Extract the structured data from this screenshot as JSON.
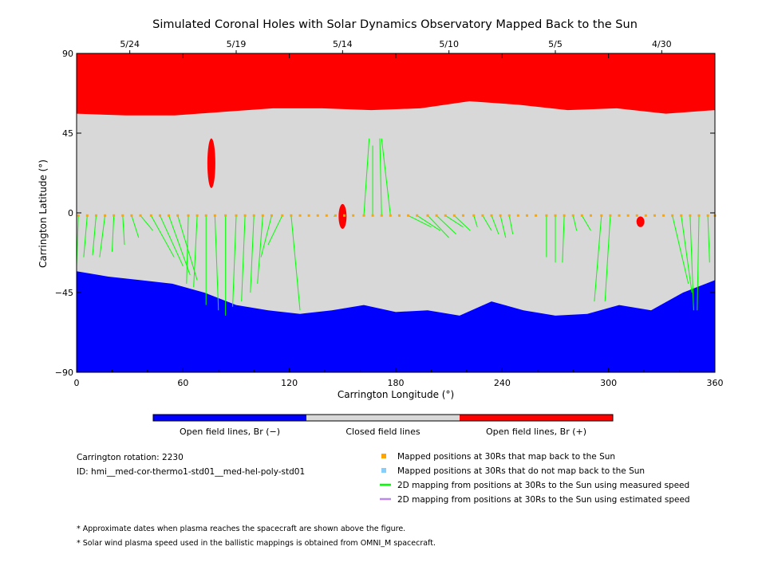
{
  "chart_data": {
    "type": "heatmap",
    "title": "Simulated Coronal Holes with Solar Dynamics Observatory Mapped Back to the Sun",
    "xlabel": "Carrington Longitude (°)",
    "ylabel": "Carrington Latitude (°)",
    "xlim": [
      0,
      360
    ],
    "ylim": [
      -90,
      90
    ],
    "x_ticks": [
      0,
      60,
      120,
      180,
      240,
      300,
      360
    ],
    "y_ticks": [
      90,
      45,
      0,
      -45,
      -90
    ],
    "y_tick_labels": [
      "90",
      "45",
      "0",
      "−45",
      "−90"
    ],
    "top_axis_dates": [
      {
        "label": "5/24",
        "lon": 30
      },
      {
        "label": "5/19",
        "lon": 90
      },
      {
        "label": "5/14",
        "lon": 150
      },
      {
        "label": "5/10",
        "lon": 210
      },
      {
        "label": "5/5",
        "lon": 270
      },
      {
        "label": "4/30",
        "lon": 330
      }
    ],
    "colorbar": [
      {
        "label": "Open field lines, Br (−)",
        "color": "#0000ff"
      },
      {
        "label": "Closed field lines",
        "color": "#d8d8d8"
      },
      {
        "label": "Open field lines, Br (+)",
        "color": "#ff0000"
      }
    ],
    "regions": {
      "north_open_positive_boundary_lat": [
        56,
        55,
        55,
        57,
        59,
        59,
        58,
        59,
        63,
        61,
        58,
        59,
        56,
        58
      ],
      "south_open_negative_boundary_lat": [
        -33,
        -36,
        -38,
        -40,
        -45,
        -52,
        -55,
        -57,
        -55,
        -52,
        -56,
        -55,
        -58,
        -50,
        -55,
        -58,
        -57,
        -52,
        -55,
        -45,
        -38
      ],
      "positive_polarity_patches": [
        {
          "lon": 76,
          "lat": 28,
          "extent_lat": [
            8,
            36
          ]
        },
        {
          "lon": 150,
          "lat": -2,
          "extent_lat": [
            -8,
            6
          ]
        },
        {
          "lon": 318,
          "lat": -5,
          "extent_lat": [
            -8,
            -2
          ]
        }
      ]
    },
    "mapped_positions_at_30Rs": {
      "lat": -1.5,
      "lon": [
        1,
        6,
        11,
        16,
        21,
        26,
        31,
        36,
        42,
        47,
        52,
        57,
        63,
        68,
        73,
        78,
        84,
        90,
        95,
        100,
        105,
        110,
        116,
        121,
        126,
        131,
        136,
        141,
        146,
        151,
        156,
        162,
        167,
        172,
        177,
        182,
        187,
        192,
        198,
        203,
        208,
        213,
        218,
        224,
        229,
        234,
        239,
        244,
        249,
        254,
        259,
        265,
        270,
        275,
        280,
        285,
        290,
        296,
        301,
        306,
        311,
        316,
        321,
        326,
        331,
        336,
        341,
        346,
        351,
        356,
        360
      ]
    },
    "mapping_lines_measured_speed": [
      {
        "from": [
          1,
          -1.5
        ],
        "to": [
          0,
          -30
        ]
      },
      {
        "from": [
          6,
          -1.5
        ],
        "to": [
          4,
          -25
        ]
      },
      {
        "from": [
          11,
          -1.5
        ],
        "to": [
          9,
          -24
        ]
      },
      {
        "from": [
          16,
          -1.5
        ],
        "to": [
          13,
          -25
        ]
      },
      {
        "from": [
          21,
          -1.5
        ],
        "to": [
          20,
          -22
        ]
      },
      {
        "from": [
          26,
          -1.5
        ],
        "to": [
          27,
          -18
        ]
      },
      {
        "from": [
          31,
          -1.5
        ],
        "to": [
          35,
          -14
        ]
      },
      {
        "from": [
          36,
          -1.5
        ],
        "to": [
          43,
          -10
        ]
      },
      {
        "from": [
          42,
          -1.5
        ],
        "to": [
          55,
          -25
        ]
      },
      {
        "from": [
          47,
          -1.5
        ],
        "to": [
          60,
          -30
        ]
      },
      {
        "from": [
          52,
          -1.5
        ],
        "to": [
          64,
          -35
        ]
      },
      {
        "from": [
          57,
          -1.5
        ],
        "to": [
          68,
          -38
        ]
      },
      {
        "from": [
          63,
          -1.5
        ],
        "to": [
          62,
          -40
        ]
      },
      {
        "from": [
          68,
          -1.5
        ],
        "to": [
          66,
          -42
        ]
      },
      {
        "from": [
          73,
          -1.5
        ],
        "to": [
          73,
          -52
        ]
      },
      {
        "from": [
          78,
          -1.5
        ],
        "to": [
          80,
          -55
        ]
      },
      {
        "from": [
          84,
          -1.5
        ],
        "to": [
          84,
          -58
        ]
      },
      {
        "from": [
          90,
          -1.5
        ],
        "to": [
          88,
          -53
        ]
      },
      {
        "from": [
          95,
          -1.5
        ],
        "to": [
          93,
          -50
        ]
      },
      {
        "from": [
          100,
          -1.5
        ],
        "to": [
          98,
          -45
        ]
      },
      {
        "from": [
          105,
          -1.5
        ],
        "to": [
          102,
          -40
        ]
      },
      {
        "from": [
          110,
          -1.5
        ],
        "to": [
          104,
          -25
        ]
      },
      {
        "from": [
          116,
          -1.5
        ],
        "to": [
          108,
          -18
        ]
      },
      {
        "from": [
          121,
          -1.5
        ],
        "to": [
          126,
          -55
        ]
      },
      {
        "from": [
          146,
          -1.5
        ],
        "to": [
          145,
          -2
        ]
      },
      {
        "from": [
          162,
          -1.5
        ],
        "to": [
          165,
          42
        ]
      },
      {
        "from": [
          167,
          -1.5
        ],
        "to": [
          167,
          38
        ]
      },
      {
        "from": [
          172,
          -1.5
        ],
        "to": [
          171,
          42
        ]
      },
      {
        "from": [
          177,
          -1.5
        ],
        "to": [
          172,
          42
        ]
      },
      {
        "from": [
          187,
          -1.5
        ],
        "to": [
          200,
          -8
        ]
      },
      {
        "from": [
          192,
          -1.5
        ],
        "to": [
          205,
          -10
        ]
      },
      {
        "from": [
          198,
          -1.5
        ],
        "to": [
          210,
          -14
        ]
      },
      {
        "from": [
          203,
          -1.5
        ],
        "to": [
          214,
          -12
        ]
      },
      {
        "from": [
          208,
          -1.5
        ],
        "to": [
          218,
          -8
        ]
      },
      {
        "from": [
          213,
          -1.5
        ],
        "to": [
          222,
          -10
        ]
      },
      {
        "from": [
          224,
          -1.5
        ],
        "to": [
          226,
          -8
        ]
      },
      {
        "from": [
          229,
          -1.5
        ],
        "to": [
          234,
          -10
        ]
      },
      {
        "from": [
          234,
          -1.5
        ],
        "to": [
          238,
          -12
        ]
      },
      {
        "from": [
          239,
          -1.5
        ],
        "to": [
          242,
          -14
        ]
      },
      {
        "from": [
          244,
          -1.5
        ],
        "to": [
          246,
          -12
        ]
      },
      {
        "from": [
          265,
          -1.5
        ],
        "to": [
          265,
          -25
        ]
      },
      {
        "from": [
          270,
          -1.5
        ],
        "to": [
          270,
          -28
        ]
      },
      {
        "from": [
          275,
          -1.5
        ],
        "to": [
          274,
          -28
        ]
      },
      {
        "from": [
          280,
          -1.5
        ],
        "to": [
          282,
          -10
        ]
      },
      {
        "from": [
          285,
          -1.5
        ],
        "to": [
          290,
          -10
        ]
      },
      {
        "from": [
          296,
          -1.5
        ],
        "to": [
          292,
          -50
        ]
      },
      {
        "from": [
          301,
          -1.5
        ],
        "to": [
          298,
          -50
        ]
      },
      {
        "from": [
          336,
          -1.5
        ],
        "to": [
          345,
          -40
        ]
      },
      {
        "from": [
          341,
          -1.5
        ],
        "to": [
          347,
          -45
        ]
      },
      {
        "from": [
          346,
          -1.5
        ],
        "to": [
          348,
          -55
        ]
      },
      {
        "from": [
          351,
          -1.5
        ],
        "to": [
          350,
          -55
        ]
      },
      {
        "from": [
          356,
          -1.5
        ],
        "to": [
          357,
          -28
        ]
      }
    ]
  },
  "info": {
    "rotation": "Carrington rotation: 2230",
    "id": "ID: hmi__med-cor-thermo1-std01__med-hel-poly-std01"
  },
  "legend": [
    {
      "label": "Mapped positions at 30Rs that map back to the Sun",
      "color": "#ffa500",
      "kind": "square"
    },
    {
      "label": "Mapped positions at 30Rs that do not map back to the Sun",
      "color": "#87cefa",
      "kind": "square"
    },
    {
      "label": "2D mapping from positions at 30Rs to the Sun using measured speed",
      "color": "#00ff00",
      "kind": "line"
    },
    {
      "label": "2D mapping from positions at 30Rs to the Sun using estimated speed",
      "color": "#bb88ee",
      "kind": "line"
    }
  ],
  "notes": [
    "* Approximate dates when plasma reaches the spacecraft are shown above the figure.",
    "* Solar wind plasma speed used in the ballistic mappings is obtained from OMNI_M spacecraft."
  ]
}
